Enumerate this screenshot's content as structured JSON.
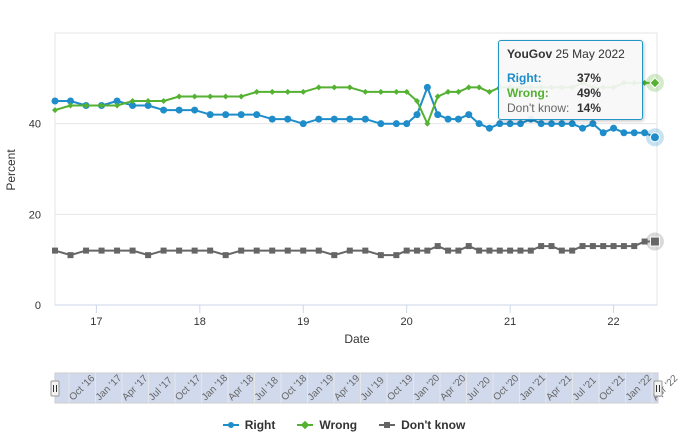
{
  "chart_data": {
    "type": "line",
    "title": "",
    "xlabel": "Date",
    "ylabel": "Percent",
    "ylim": [
      0,
      60
    ],
    "xlim": [
      2016.6,
      2022.42
    ],
    "y_ticks": [
      0,
      20,
      40
    ],
    "x_ticks": [
      {
        "value": 2017,
        "label": "17"
      },
      {
        "value": 2018,
        "label": "18"
      },
      {
        "value": 2019,
        "label": "19"
      },
      {
        "value": 2020,
        "label": "20"
      },
      {
        "value": 2021,
        "label": "21"
      },
      {
        "value": 2022,
        "label": "22"
      }
    ],
    "series": [
      {
        "name": "Right",
        "color": "#1f8dc9",
        "marker": "circle",
        "x": [
          2016.6,
          2016.75,
          2016.9,
          2017.05,
          2017.2,
          2017.35,
          2017.5,
          2017.65,
          2017.8,
          2017.95,
          2018.1,
          2018.25,
          2018.4,
          2018.55,
          2018.7,
          2018.85,
          2019.0,
          2019.15,
          2019.3,
          2019.45,
          2019.6,
          2019.75,
          2019.9,
          2020.0,
          2020.1,
          2020.2,
          2020.3,
          2020.4,
          2020.5,
          2020.6,
          2020.7,
          2020.8,
          2020.9,
          2021.0,
          2021.1,
          2021.2,
          2021.3,
          2021.4,
          2021.5,
          2021.6,
          2021.7,
          2021.8,
          2021.9,
          2022.0,
          2022.1,
          2022.2,
          2022.3,
          2022.4
        ],
        "values": [
          45,
          45,
          44,
          44,
          45,
          44,
          44,
          43,
          43,
          43,
          42,
          42,
          42,
          42,
          41,
          41,
          40,
          41,
          41,
          41,
          41,
          40,
          40,
          40,
          42,
          48,
          42,
          41,
          41,
          42,
          40,
          39,
          40,
          40,
          40,
          41,
          40,
          40,
          40,
          40,
          39,
          40,
          38,
          39,
          38,
          38,
          38,
          37
        ]
      },
      {
        "name": "Wrong",
        "color": "#54b131",
        "marker": "diamond",
        "x": [
          2016.6,
          2016.75,
          2016.9,
          2017.05,
          2017.2,
          2017.35,
          2017.5,
          2017.65,
          2017.8,
          2017.95,
          2018.1,
          2018.25,
          2018.4,
          2018.55,
          2018.7,
          2018.85,
          2019.0,
          2019.15,
          2019.3,
          2019.45,
          2019.6,
          2019.75,
          2019.9,
          2020.0,
          2020.1,
          2020.2,
          2020.3,
          2020.4,
          2020.5,
          2020.6,
          2020.7,
          2020.8,
          2020.9,
          2021.0,
          2021.1,
          2021.2,
          2021.3,
          2021.4,
          2021.5,
          2021.6,
          2021.7,
          2021.8,
          2021.9,
          2022.0,
          2022.1,
          2022.2,
          2022.3,
          2022.4
        ],
        "values": [
          43,
          44,
          44,
          44,
          44,
          45,
          45,
          45,
          46,
          46,
          46,
          46,
          46,
          47,
          47,
          47,
          47,
          48,
          48,
          48,
          47,
          47,
          47,
          47,
          45,
          40,
          46,
          47,
          47,
          48,
          48,
          47,
          48,
          48,
          48,
          48,
          48,
          48,
          48,
          48,
          49,
          48,
          48,
          48,
          49,
          49,
          49,
          49
        ]
      },
      {
        "name": "Don't know",
        "color": "#666666",
        "marker": "square",
        "x": [
          2016.6,
          2016.75,
          2016.9,
          2017.05,
          2017.2,
          2017.35,
          2017.5,
          2017.65,
          2017.8,
          2017.95,
          2018.1,
          2018.25,
          2018.4,
          2018.55,
          2018.7,
          2018.85,
          2019.0,
          2019.15,
          2019.3,
          2019.45,
          2019.6,
          2019.75,
          2019.9,
          2020.0,
          2020.1,
          2020.2,
          2020.3,
          2020.4,
          2020.5,
          2020.6,
          2020.7,
          2020.8,
          2020.9,
          2021.0,
          2021.1,
          2021.2,
          2021.3,
          2021.4,
          2021.5,
          2021.6,
          2021.7,
          2021.8,
          2021.9,
          2022.0,
          2022.1,
          2022.2,
          2022.3,
          2022.4
        ],
        "values": [
          12,
          11,
          12,
          12,
          12,
          12,
          11,
          12,
          12,
          12,
          12,
          11,
          12,
          12,
          12,
          12,
          12,
          12,
          11,
          12,
          12,
          11,
          11,
          12,
          12,
          12,
          13,
          12,
          12,
          13,
          12,
          12,
          12,
          12,
          12,
          12,
          13,
          13,
          12,
          12,
          13,
          13,
          13,
          13,
          13,
          13,
          14,
          14
        ]
      }
    ]
  },
  "tooltip": {
    "source": "YouGov",
    "date": "25 May 2022",
    "rows": [
      {
        "label": "Right:",
        "value": "37%",
        "color": "#1f8dc9"
      },
      {
        "label": "Wrong:",
        "value": "49%",
        "color": "#54b131"
      },
      {
        "label": "Don't know:",
        "value": "14%",
        "color": "#666666"
      }
    ]
  },
  "navigator": {
    "labels": [
      "Oct '16",
      "Jan '17",
      "Apr '17",
      "Jul '17",
      "Oct '17",
      "Jan '18",
      "Apr '18",
      "Jul '18",
      "Oct '18",
      "Jan '19",
      "Apr '19",
      "Jul '19",
      "Oct '19",
      "Jan '20",
      "Apr '20",
      "Jul '20",
      "Oct '20",
      "Jan '21",
      "Apr '21",
      "Jul '21",
      "Oct '21",
      "Jan '22",
      "Apr '22"
    ]
  },
  "legend": [
    {
      "name": "Right",
      "color": "#1f8dc9",
      "marker": "circle"
    },
    {
      "name": "Wrong",
      "color": "#54b131",
      "marker": "diamond"
    },
    {
      "name": "Don't know",
      "color": "#666666",
      "marker": "square"
    }
  ]
}
